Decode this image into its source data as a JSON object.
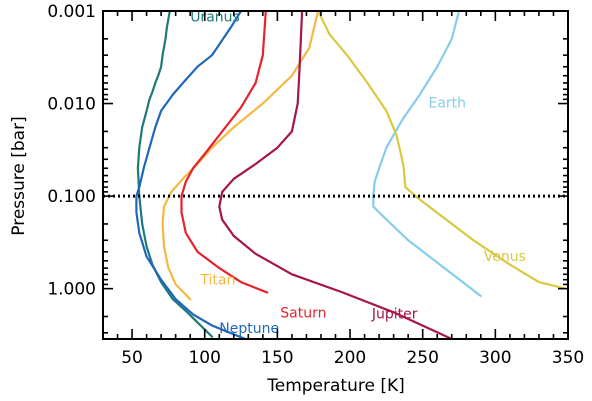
{
  "chart_data": {
    "type": "line",
    "xlabel": "Temperature [K]",
    "ylabel": "Pressure [bar]",
    "xlim": [
      30,
      350
    ],
    "ylim": [
      0.001,
      3.5
    ],
    "yscale": "log",
    "y_inverted": true,
    "xticks": [
      "50",
      "100",
      "150",
      "200",
      "250",
      "300",
      "350"
    ],
    "yticks": [
      "0.001",
      "0.010",
      "0.100",
      "1.000"
    ],
    "reference_line": {
      "y": 0.1,
      "style": "dotted",
      "color": "#000000"
    },
    "series": [
      {
        "name": "Uranus",
        "color": "#1e7a78",
        "x": [
          76,
          74,
          73,
          71,
          70,
          68,
          66,
          64,
          62,
          60,
          57,
          55,
          54,
          55,
          57,
          60,
          64,
          70,
          78,
          88,
          96,
          105
        ],
        "y": [
          0.001,
          0.0015,
          0.002,
          0.003,
          0.004,
          0.005,
          0.006,
          0.0075,
          0.009,
          0.012,
          0.018,
          0.03,
          0.05,
          0.1,
          0.2,
          0.35,
          0.55,
          0.85,
          1.3,
          1.8,
          2.4,
          3.3
        ]
      },
      {
        "name": "Neptune",
        "color": "#1f66bd",
        "x": [
          125,
          118,
          105,
          95,
          85,
          78,
          70,
          66,
          62,
          58,
          55,
          53,
          53,
          55,
          60,
          70,
          80,
          92,
          105,
          128
        ],
        "y": [
          0.001,
          0.0015,
          0.003,
          0.004,
          0.006,
          0.008,
          0.012,
          0.018,
          0.03,
          0.05,
          0.08,
          0.1,
          0.15,
          0.25,
          0.45,
          0.8,
          1.3,
          1.9,
          2.5,
          3.5
        ]
      },
      {
        "name": "Titan",
        "color": "#f5b840",
        "x": [
          178,
          172,
          160,
          140,
          120,
          105,
          95,
          85,
          77,
          72,
          71,
          72,
          75,
          80,
          90
        ],
        "y": [
          0.001,
          0.0025,
          0.005,
          0.01,
          0.018,
          0.03,
          0.045,
          0.065,
          0.09,
          0.13,
          0.2,
          0.35,
          0.6,
          0.9,
          1.3
        ]
      },
      {
        "name": "Saturn",
        "color": "#e4232e",
        "x": [
          142,
          140,
          135,
          125,
          112,
          100,
          92,
          87,
          84,
          84,
          87,
          95,
          110,
          125,
          143
        ],
        "y": [
          0.001,
          0.003,
          0.006,
          0.011,
          0.02,
          0.035,
          0.05,
          0.07,
          0.1,
          0.15,
          0.25,
          0.4,
          0.6,
          0.85,
          1.1
        ]
      },
      {
        "name": "Jupiter",
        "color": "#a5154a",
        "x": [
          167,
          165,
          164,
          160,
          150,
          135,
          120,
          112,
          110,
          112,
          120,
          135,
          160,
          195,
          230,
          270
        ],
        "y": [
          0.001,
          0.005,
          0.01,
          0.02,
          0.03,
          0.045,
          0.065,
          0.09,
          0.13,
          0.18,
          0.27,
          0.42,
          0.7,
          1.1,
          1.8,
          3.5
        ]
      },
      {
        "name": "Earth",
        "color": "#86cdea",
        "x": [
          275,
          270,
          260,
          248,
          236,
          225,
          220,
          217,
          216,
          216,
          220,
          240,
          265,
          290
        ],
        "y": [
          0.001,
          0.002,
          0.004,
          0.008,
          0.015,
          0.03,
          0.05,
          0.07,
          0.1,
          0.13,
          0.15,
          0.3,
          0.6,
          1.2
        ]
      },
      {
        "name": "Venus",
        "color": "#d8c940",
        "x": [
          178,
          186,
          198,
          212,
          225,
          232,
          235,
          237,
          238,
          245,
          262,
          285,
          310,
          330,
          348
        ],
        "y": [
          0.001,
          0.0018,
          0.003,
          0.006,
          0.012,
          0.022,
          0.035,
          0.05,
          0.08,
          0.1,
          0.16,
          0.3,
          0.55,
          0.85,
          1.0
        ]
      }
    ],
    "labels": [
      {
        "text": "Uranus",
        "x": 90,
        "y": 0.0013,
        "color": "#1e7a78"
      },
      {
        "text": "Earth",
        "x": 254,
        "y": 0.011,
        "color": "#86cdea"
      },
      {
        "text": "Venus",
        "x": 292,
        "y": 0.5,
        "color": "#d8c940"
      },
      {
        "text": "Titan",
        "x": 97,
        "y": 0.9,
        "color": "#f5b840"
      },
      {
        "text": "Saturn",
        "x": 152,
        "y": 2.05,
        "color": "#e4232e"
      },
      {
        "text": "Jupiter",
        "x": 215,
        "y": 2.1,
        "color": "#a5154a"
      },
      {
        "text": "Neptune",
        "x": 110,
        "y": 3.0,
        "color": "#1f66bd"
      }
    ]
  }
}
